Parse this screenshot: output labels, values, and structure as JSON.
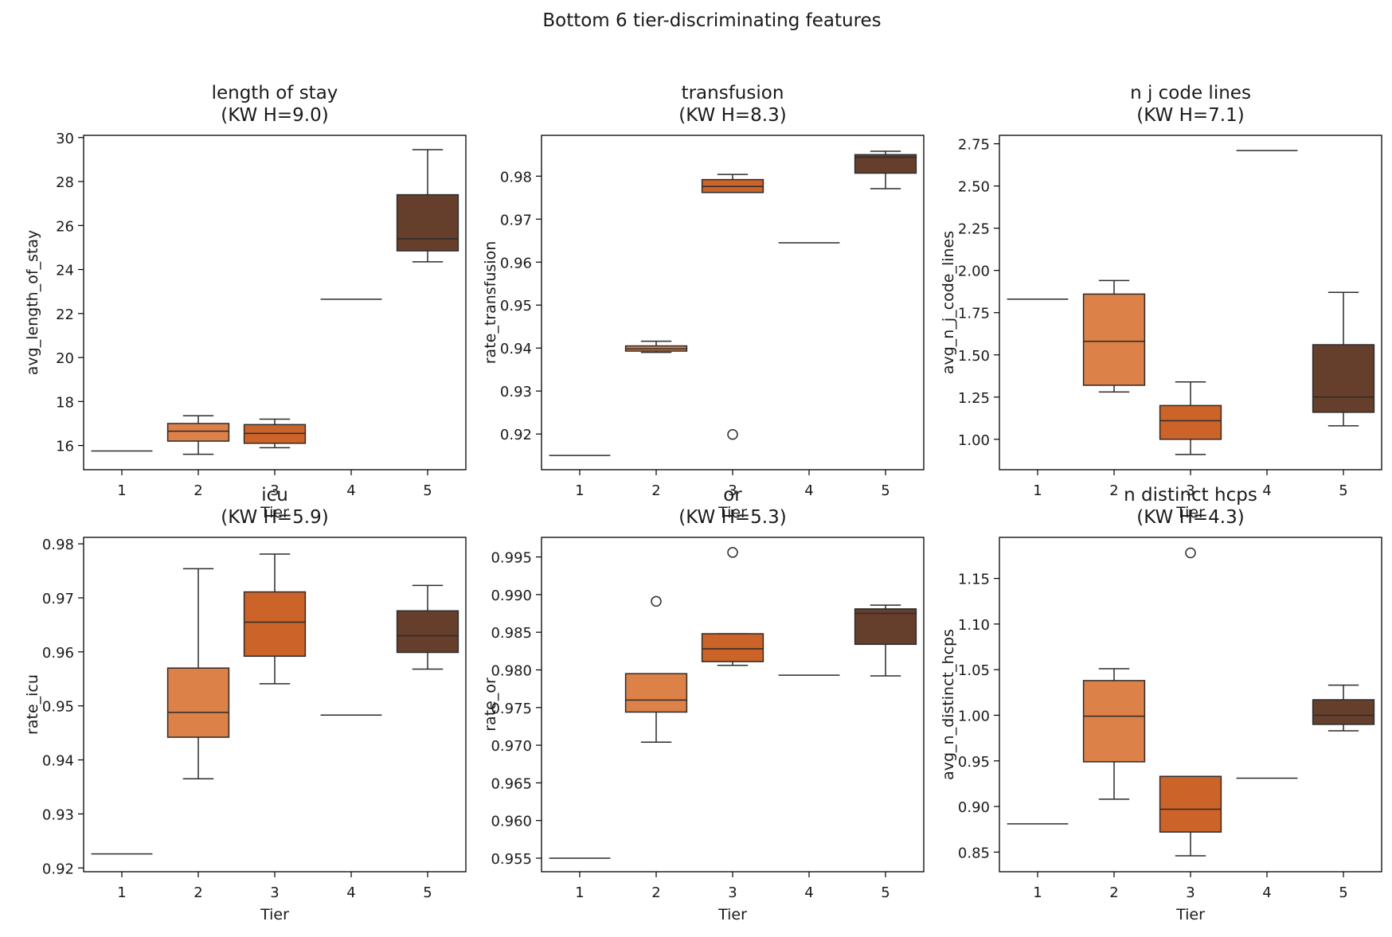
{
  "figure_title": "Bottom 6 tier-discriminating features",
  "colors": {
    "tier1": "#e9a06b",
    "tier2": "#dc8148",
    "tier3": "#cc6328",
    "tier4": "#8e5a3a",
    "tier5": "#663f2c",
    "outline": "#2b2b2b"
  },
  "chart_data": [
    {
      "type": "box",
      "title": "length of stay",
      "subtitle": "(KW H=9.0)",
      "xlabel": "Tier",
      "ylabel": "avg_length_of_stay",
      "categories": [
        "1",
        "2",
        "3",
        "4",
        "5"
      ],
      "ylim": [
        14.9,
        30.1
      ],
      "yticks": [
        16,
        18,
        20,
        22,
        24,
        26,
        28,
        30
      ],
      "tick_decimals": 0,
      "boxes": [
        {
          "tier": "1",
          "whislo": 15.75,
          "q1": 15.75,
          "med": 15.75,
          "q3": 15.75,
          "whishi": 15.75,
          "fliers": []
        },
        {
          "tier": "2",
          "whislo": 15.6,
          "q1": 16.2,
          "med": 16.65,
          "q3": 17.0,
          "whishi": 17.35,
          "fliers": []
        },
        {
          "tier": "3",
          "whislo": 15.9,
          "q1": 16.1,
          "med": 16.55,
          "q3": 16.95,
          "whishi": 17.2,
          "fliers": []
        },
        {
          "tier": "4",
          "whislo": 22.65,
          "q1": 22.65,
          "med": 22.65,
          "q3": 22.65,
          "whishi": 22.65,
          "fliers": []
        },
        {
          "tier": "5",
          "whislo": 24.35,
          "q1": 24.85,
          "med": 25.4,
          "q3": 27.4,
          "whishi": 29.45,
          "fliers": []
        }
      ]
    },
    {
      "type": "box",
      "title": "transfusion",
      "subtitle": "(KW H=8.3)",
      "xlabel": "Tier",
      "ylabel": "rate_transfusion",
      "categories": [
        "1",
        "2",
        "3",
        "4",
        "5"
      ],
      "ylim": [
        0.9117,
        0.9895
      ],
      "yticks": [
        0.92,
        0.93,
        0.94,
        0.95,
        0.96,
        0.97,
        0.98
      ],
      "tick_decimals": 2,
      "boxes": [
        {
          "tier": "1",
          "whislo": 0.915,
          "q1": 0.915,
          "med": 0.915,
          "q3": 0.915,
          "whishi": 0.915,
          "fliers": []
        },
        {
          "tier": "2",
          "whislo": 0.939,
          "q1": 0.9393,
          "med": 0.9398,
          "q3": 0.9405,
          "whishi": 0.9416,
          "fliers": []
        },
        {
          "tier": "3",
          "whislo": 0.9762,
          "q1": 0.9762,
          "med": 0.9776,
          "q3": 0.9792,
          "whishi": 0.9804,
          "fliers": [
            0.9199
          ]
        },
        {
          "tier": "4",
          "whislo": 0.9645,
          "q1": 0.9645,
          "med": 0.9645,
          "q3": 0.9645,
          "whishi": 0.9645,
          "fliers": []
        },
        {
          "tier": "5",
          "whislo": 0.9771,
          "q1": 0.9807,
          "med": 0.9844,
          "q3": 0.985,
          "whishi": 0.9858,
          "fliers": []
        }
      ]
    },
    {
      "type": "box",
      "title": "n j code lines",
      "subtitle": "(KW H=7.1)",
      "xlabel": "Tier",
      "ylabel": "avg_n_j_code_lines",
      "categories": [
        "1",
        "2",
        "3",
        "4",
        "5"
      ],
      "ylim": [
        0.82,
        2.8
      ],
      "yticks": [
        1.0,
        1.25,
        1.5,
        1.75,
        2.0,
        2.25,
        2.5,
        2.75
      ],
      "tick_decimals": 2,
      "boxes": [
        {
          "tier": "1",
          "whislo": 1.83,
          "q1": 1.83,
          "med": 1.83,
          "q3": 1.83,
          "whishi": 1.83,
          "fliers": []
        },
        {
          "tier": "2",
          "whislo": 1.28,
          "q1": 1.32,
          "med": 1.58,
          "q3": 1.86,
          "whishi": 1.94,
          "fliers": []
        },
        {
          "tier": "3",
          "whislo": 0.91,
          "q1": 1.0,
          "med": 1.11,
          "q3": 1.2,
          "whishi": 1.34,
          "fliers": []
        },
        {
          "tier": "4",
          "whislo": 2.71,
          "q1": 2.71,
          "med": 2.71,
          "q3": 2.71,
          "whishi": 2.71,
          "fliers": []
        },
        {
          "tier": "5",
          "whislo": 1.08,
          "q1": 1.16,
          "med": 1.25,
          "q3": 1.56,
          "whishi": 1.87,
          "fliers": []
        }
      ]
    },
    {
      "type": "box",
      "title": "icu",
      "subtitle": "(KW H=5.9)",
      "xlabel": "Tier",
      "ylabel": "rate_icu",
      "categories": [
        "1",
        "2",
        "3",
        "4",
        "5"
      ],
      "ylim": [
        0.9193,
        0.9812
      ],
      "yticks": [
        0.92,
        0.93,
        0.94,
        0.95,
        0.96,
        0.97,
        0.98
      ],
      "tick_decimals": 2,
      "boxes": [
        {
          "tier": "1",
          "whislo": 0.9226,
          "q1": 0.9226,
          "med": 0.9226,
          "q3": 0.9226,
          "whishi": 0.9226,
          "fliers": []
        },
        {
          "tier": "2",
          "whislo": 0.9365,
          "q1": 0.9442,
          "med": 0.9488,
          "q3": 0.957,
          "whishi": 0.9754,
          "fliers": []
        },
        {
          "tier": "3",
          "whislo": 0.9541,
          "q1": 0.9592,
          "med": 0.9655,
          "q3": 0.9711,
          "whishi": 0.9781,
          "fliers": []
        },
        {
          "tier": "4",
          "whislo": 0.9483,
          "q1": 0.9483,
          "med": 0.9483,
          "q3": 0.9483,
          "whishi": 0.9483,
          "fliers": []
        },
        {
          "tier": "5",
          "whislo": 0.9568,
          "q1": 0.9599,
          "med": 0.963,
          "q3": 0.9676,
          "whishi": 0.9723,
          "fliers": []
        }
      ]
    },
    {
      "type": "box",
      "title": "or",
      "subtitle": "(KW H=5.3)",
      "xlabel": "Tier",
      "ylabel": "rate_or",
      "categories": [
        "1",
        "2",
        "3",
        "4",
        "5"
      ],
      "ylim": [
        0.9532,
        0.9976
      ],
      "yticks": [
        0.955,
        0.96,
        0.965,
        0.97,
        0.975,
        0.98,
        0.985,
        0.99,
        0.995
      ],
      "tick_decimals": 3,
      "boxes": [
        {
          "tier": "1",
          "whislo": 0.955,
          "q1": 0.955,
          "med": 0.955,
          "q3": 0.955,
          "whishi": 0.955,
          "fliers": []
        },
        {
          "tier": "2",
          "whislo": 0.9704,
          "q1": 0.9744,
          "med": 0.976,
          "q3": 0.9795,
          "whishi": 0.9795,
          "fliers": [
            0.9891
          ]
        },
        {
          "tier": "3",
          "whislo": 0.9806,
          "q1": 0.9811,
          "med": 0.9828,
          "q3": 0.9848,
          "whishi": 0.9848,
          "fliers": [
            0.9956
          ]
        },
        {
          "tier": "4",
          "whislo": 0.9793,
          "q1": 0.9793,
          "med": 0.9793,
          "q3": 0.9793,
          "whishi": 0.9793,
          "fliers": []
        },
        {
          "tier": "5",
          "whislo": 0.9792,
          "q1": 0.9834,
          "med": 0.9875,
          "q3": 0.9881,
          "whishi": 0.9886,
          "fliers": []
        }
      ]
    },
    {
      "type": "box",
      "title": "n distinct hcps",
      "subtitle": "(KW H=4.3)",
      "xlabel": "Tier",
      "ylabel": "avg_n_distinct_hcps",
      "categories": [
        "1",
        "2",
        "3",
        "4",
        "5"
      ],
      "ylim": [
        0.8285,
        1.195
      ],
      "yticks": [
        0.85,
        0.9,
        0.95,
        1.0,
        1.05,
        1.1,
        1.15
      ],
      "tick_decimals": 2,
      "boxes": [
        {
          "tier": "1",
          "whislo": 0.881,
          "q1": 0.881,
          "med": 0.881,
          "q3": 0.881,
          "whishi": 0.881,
          "fliers": []
        },
        {
          "tier": "2",
          "whislo": 0.908,
          "q1": 0.949,
          "med": 0.999,
          "q3": 1.038,
          "whishi": 1.051,
          "fliers": []
        },
        {
          "tier": "3",
          "whislo": 0.846,
          "q1": 0.872,
          "med": 0.897,
          "q3": 0.933,
          "whishi": 0.933,
          "fliers": [
            1.178
          ]
        },
        {
          "tier": "4",
          "whislo": 0.931,
          "q1": 0.931,
          "med": 0.931,
          "q3": 0.931,
          "whishi": 0.931,
          "fliers": []
        },
        {
          "tier": "5",
          "whislo": 0.983,
          "q1": 0.99,
          "med": 1.0,
          "q3": 1.017,
          "whishi": 1.033,
          "fliers": []
        }
      ]
    }
  ]
}
